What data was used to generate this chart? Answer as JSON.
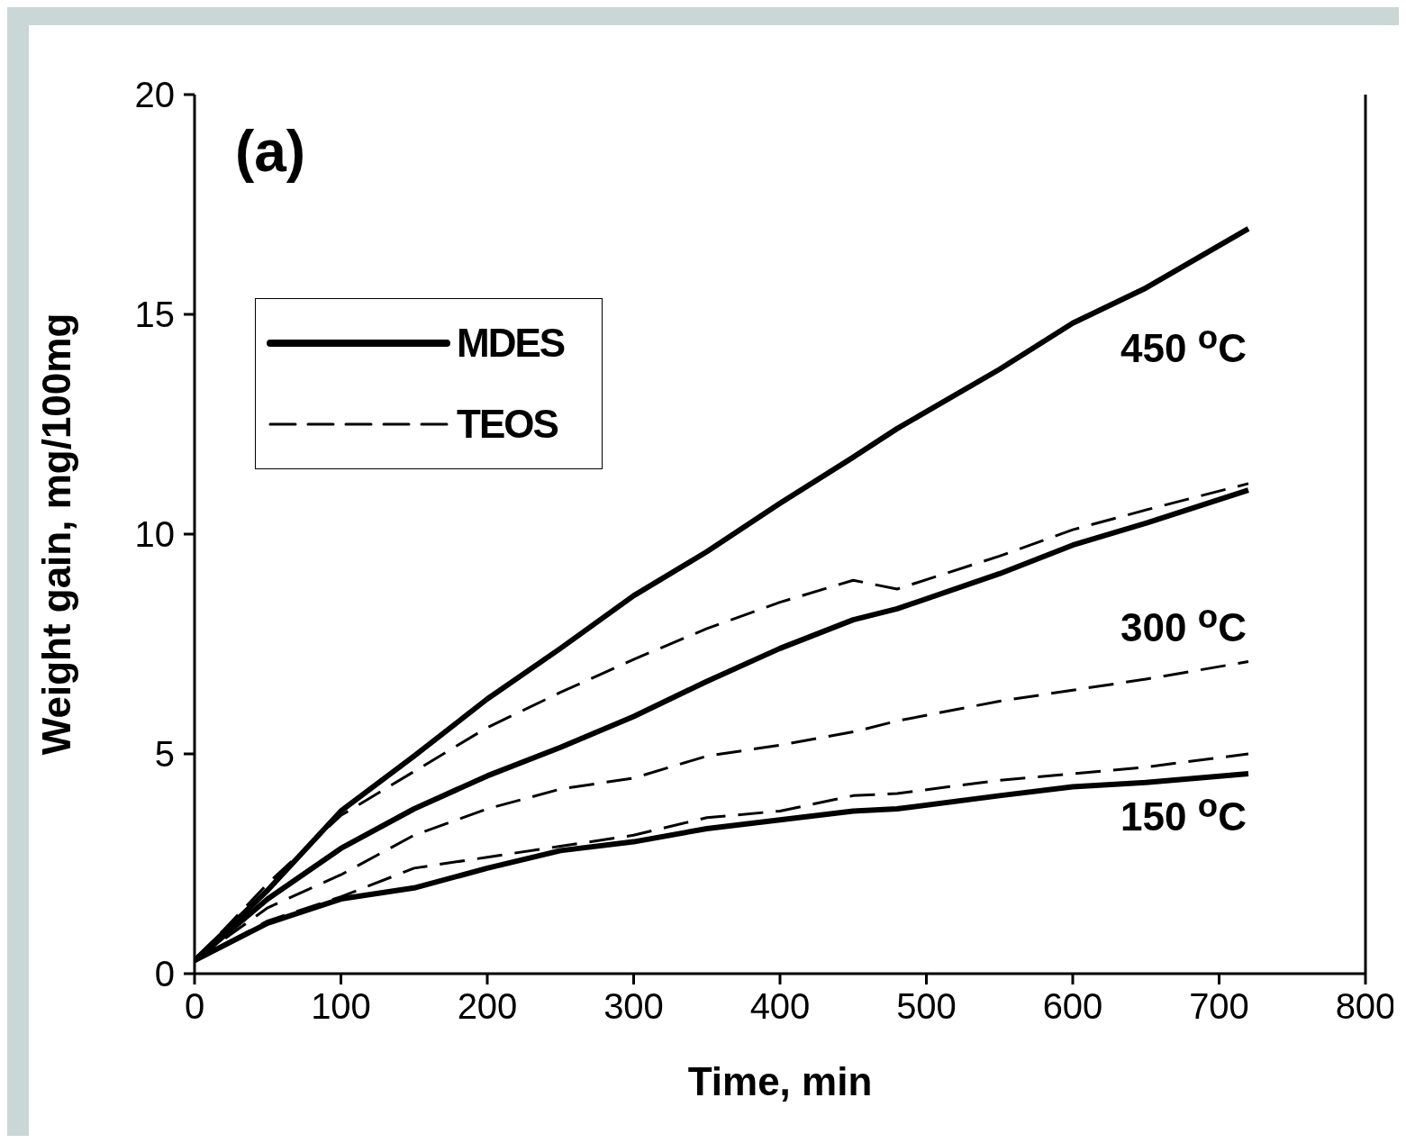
{
  "chart_data": {
    "type": "line",
    "xlabel": "Time, min",
    "ylabel": "Weight gain, mg/100mg",
    "xlim": [
      0,
      800
    ],
    "xticks": [
      0,
      100,
      200,
      300,
      400,
      500,
      600,
      700,
      800
    ],
    "ylim": [
      0,
      20
    ],
    "yticks": [
      0,
      5,
      10,
      15,
      20
    ],
    "legend": "top left",
    "marker": "none",
    "x": [
      0,
      50,
      100,
      150,
      200,
      250,
      300,
      350,
      400,
      450,
      480,
      550,
      600,
      650,
      720
    ],
    "series": [
      {
        "name": "MDES",
        "color": "#000000",
        "line_style": "solid",
        "values": [
          0.3,
          1.9,
          3.7,
          4.95,
          6.25,
          7.4,
          8.6,
          9.6,
          10.7,
          11.75,
          12.4,
          13.75,
          14.8,
          15.6,
          16.95
        ]
      },
      {
        "name": "TEOS",
        "color": "#000000",
        "line_style": "dashed",
        "values": [
          0.3,
          2.05,
          3.6,
          4.6,
          5.6,
          6.4,
          7.15,
          7.85,
          8.45,
          8.95,
          8.75,
          9.5,
          10.1,
          10.55,
          11.15
        ]
      },
      {
        "color": "#000000",
        "line_style": "solid",
        "values": [
          0.3,
          1.7,
          2.85,
          3.75,
          4.5,
          5.15,
          5.85,
          6.65,
          7.4,
          8.05,
          8.3,
          9.1,
          9.75,
          10.25,
          11.0
        ]
      },
      {
        "color": "#000000",
        "line_style": "dashed",
        "values": [
          0.3,
          1.5,
          2.25,
          3.15,
          3.75,
          4.2,
          4.45,
          4.95,
          5.2,
          5.5,
          5.75,
          6.2,
          6.45,
          6.7,
          7.1
        ]
      },
      {
        "color": "#000000",
        "line_style": "solid",
        "values": [
          0.3,
          1.15,
          1.7,
          1.95,
          2.4,
          2.8,
          3.0,
          3.3,
          3.5,
          3.7,
          3.75,
          4.05,
          4.25,
          4.35,
          4.55
        ]
      },
      {
        "color": "#000000",
        "line_style": "dashed",
        "values": [
          0.3,
          1.2,
          1.75,
          2.4,
          2.65,
          2.9,
          3.15,
          3.55,
          3.7,
          4.05,
          4.1,
          4.4,
          4.55,
          4.7,
          5.0
        ]
      }
    ],
    "annotations": [
      "(a)",
      "450 $^{o}$C",
      "300 $^{o}$C",
      "150 $^{o}$C"
    ]
  }
}
